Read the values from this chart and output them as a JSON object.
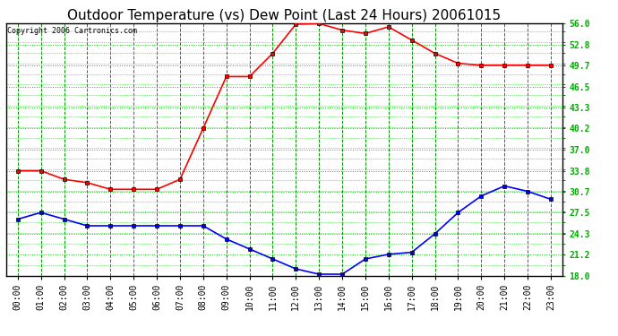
{
  "title": "Outdoor Temperature (vs) Dew Point (Last 24 Hours) 20061015",
  "copyright_text": "Copyright 2006 Cartronics.com",
  "x_labels": [
    "00:00",
    "01:00",
    "02:00",
    "03:00",
    "04:00",
    "05:00",
    "06:00",
    "07:00",
    "08:00",
    "09:00",
    "10:00",
    "11:00",
    "12:00",
    "13:00",
    "14:00",
    "15:00",
    "16:00",
    "17:00",
    "18:00",
    "19:00",
    "20:00",
    "21:00",
    "22:00",
    "23:00"
  ],
  "temp_data": [
    33.8,
    33.8,
    32.5,
    32.0,
    31.0,
    31.0,
    31.0,
    32.5,
    40.2,
    48.0,
    48.0,
    51.5,
    55.9,
    56.0,
    55.0,
    54.5,
    55.5,
    53.5,
    51.5,
    50.0,
    49.7,
    49.7,
    49.7,
    49.7
  ],
  "dew_data": [
    26.5,
    27.5,
    26.5,
    25.5,
    25.5,
    25.5,
    25.5,
    25.5,
    25.5,
    23.5,
    22.0,
    20.5,
    19.0,
    18.2,
    18.2,
    20.5,
    21.2,
    21.5,
    24.3,
    27.5,
    30.0,
    31.5,
    30.7,
    29.5
  ],
  "temp_color": "#FF0000",
  "dew_color": "#0000FF",
  "grid_h_color": "#00CC00",
  "grid_v_color": "#009900",
  "background_color": "#FFFFFF",
  "plot_bg_color": "#FFFFFF",
  "y_min": 18.0,
  "y_max": 56.0,
  "y_ticks": [
    18.0,
    21.2,
    24.3,
    27.5,
    30.7,
    33.8,
    37.0,
    40.2,
    43.3,
    46.5,
    49.7,
    52.8,
    56.0
  ],
  "title_fontsize": 11,
  "copyright_fontsize": 6,
  "tick_fontsize": 7,
  "marker": "s",
  "marker_size": 3,
  "line_width": 1.2
}
